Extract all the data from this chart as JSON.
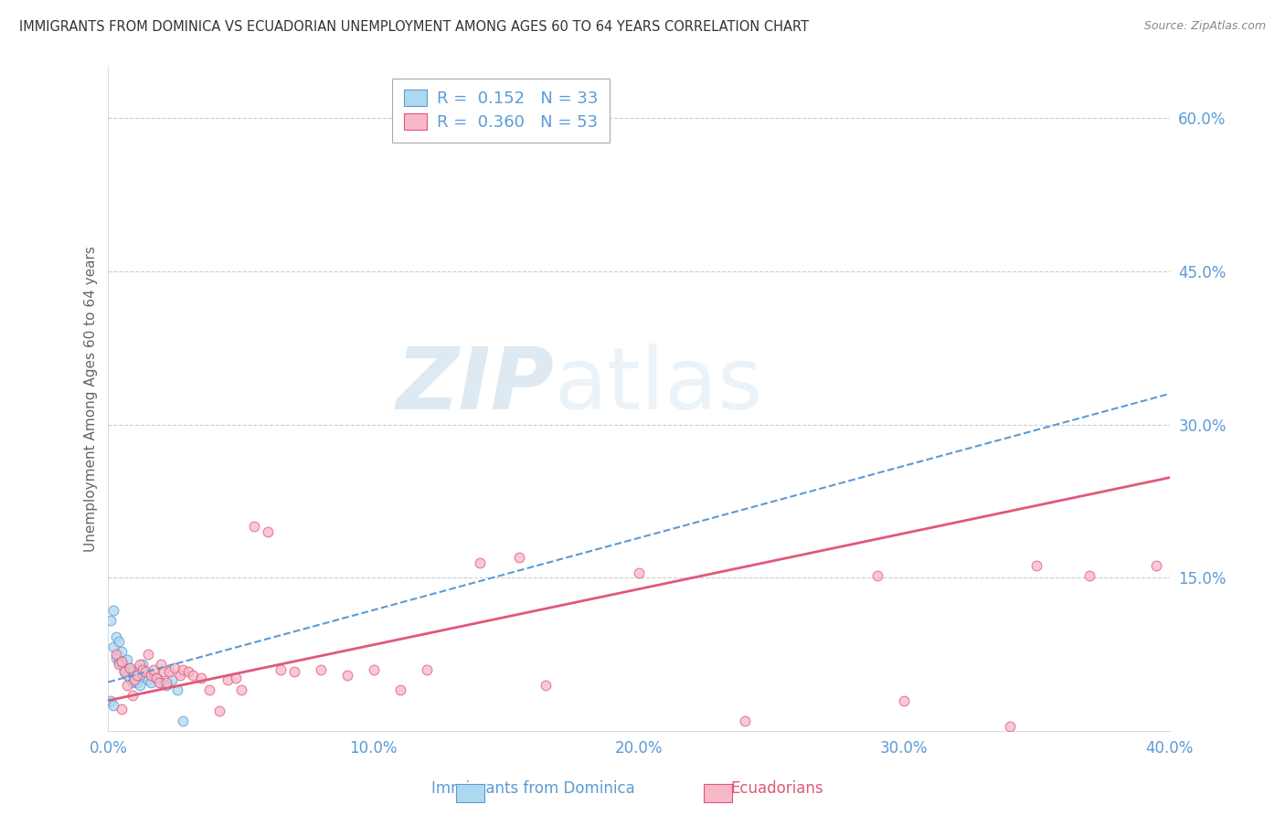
{
  "title": "IMMIGRANTS FROM DOMINICA VS ECUADORIAN UNEMPLOYMENT AMONG AGES 60 TO 64 YEARS CORRELATION CHART",
  "source": "Source: ZipAtlas.com",
  "ylabel": "Unemployment Among Ages 60 to 64 years",
  "xlim": [
    0.0,
    0.4
  ],
  "ylim": [
    0.0,
    0.65
  ],
  "xticks": [
    0.0,
    0.1,
    0.2,
    0.3,
    0.4
  ],
  "xtick_labels": [
    "0.0%",
    "10.0%",
    "20.0%",
    "30.0%",
    "40.0%"
  ],
  "yticks_right": [
    0.15,
    0.3,
    0.45,
    0.6
  ],
  "ytick_right_labels": [
    "15.0%",
    "30.0%",
    "45.0%",
    "60.0%"
  ],
  "grid_color": "#cccccc",
  "background_color": "#ffffff",
  "legend_R1": "R =  0.152",
  "legend_N1": "N = 33",
  "legend_R2": "R =  0.360",
  "legend_N2": "N = 53",
  "blue_fill": "#aed8f0",
  "blue_edge": "#5b9bd5",
  "pink_fill": "#f7b8c8",
  "pink_edge": "#e05878",
  "blue_scatter": [
    [
      0.001,
      0.108
    ],
    [
      0.002,
      0.118
    ],
    [
      0.002,
      0.082
    ],
    [
      0.003,
      0.092
    ],
    [
      0.003,
      0.072
    ],
    [
      0.004,
      0.088
    ],
    [
      0.004,
      0.068
    ],
    [
      0.005,
      0.078
    ],
    [
      0.005,
      0.065
    ],
    [
      0.006,
      0.062
    ],
    [
      0.006,
      0.058
    ],
    [
      0.007,
      0.07
    ],
    [
      0.007,
      0.055
    ],
    [
      0.008,
      0.062
    ],
    [
      0.008,
      0.052
    ],
    [
      0.009,
      0.058
    ],
    [
      0.009,
      0.048
    ],
    [
      0.01,
      0.055
    ],
    [
      0.01,
      0.05
    ],
    [
      0.011,
      0.048
    ],
    [
      0.012,
      0.045
    ],
    [
      0.013,
      0.065
    ],
    [
      0.014,
      0.055
    ],
    [
      0.015,
      0.05
    ],
    [
      0.016,
      0.048
    ],
    [
      0.018,
      0.052
    ],
    [
      0.02,
      0.048
    ],
    [
      0.022,
      0.045
    ],
    [
      0.024,
      0.05
    ],
    [
      0.026,
      0.04
    ],
    [
      0.028,
      0.01
    ],
    [
      0.001,
      0.03
    ],
    [
      0.002,
      0.025
    ]
  ],
  "pink_scatter": [
    [
      0.003,
      0.075
    ],
    [
      0.004,
      0.065
    ],
    [
      0.005,
      0.022
    ],
    [
      0.005,
      0.068
    ],
    [
      0.006,
      0.058
    ],
    [
      0.007,
      0.045
    ],
    [
      0.008,
      0.062
    ],
    [
      0.009,
      0.035
    ],
    [
      0.01,
      0.05
    ],
    [
      0.011,
      0.055
    ],
    [
      0.012,
      0.065
    ],
    [
      0.013,
      0.06
    ],
    [
      0.014,
      0.058
    ],
    [
      0.015,
      0.075
    ],
    [
      0.016,
      0.055
    ],
    [
      0.017,
      0.06
    ],
    [
      0.018,
      0.052
    ],
    [
      0.019,
      0.048
    ],
    [
      0.02,
      0.065
    ],
    [
      0.021,
      0.058
    ],
    [
      0.022,
      0.048
    ],
    [
      0.023,
      0.058
    ],
    [
      0.025,
      0.062
    ],
    [
      0.027,
      0.055
    ],
    [
      0.028,
      0.06
    ],
    [
      0.03,
      0.058
    ],
    [
      0.032,
      0.055
    ],
    [
      0.035,
      0.052
    ],
    [
      0.038,
      0.04
    ],
    [
      0.042,
      0.02
    ],
    [
      0.045,
      0.05
    ],
    [
      0.048,
      0.052
    ],
    [
      0.05,
      0.04
    ],
    [
      0.055,
      0.2
    ],
    [
      0.06,
      0.195
    ],
    [
      0.065,
      0.06
    ],
    [
      0.07,
      0.058
    ],
    [
      0.08,
      0.06
    ],
    [
      0.09,
      0.055
    ],
    [
      0.1,
      0.06
    ],
    [
      0.11,
      0.04
    ],
    [
      0.12,
      0.06
    ],
    [
      0.14,
      0.165
    ],
    [
      0.155,
      0.17
    ],
    [
      0.165,
      0.045
    ],
    [
      0.2,
      0.155
    ],
    [
      0.24,
      0.01
    ],
    [
      0.29,
      0.152
    ],
    [
      0.3,
      0.03
    ],
    [
      0.34,
      0.005
    ],
    [
      0.35,
      0.162
    ],
    [
      0.37,
      0.152
    ],
    [
      0.395,
      0.162
    ]
  ],
  "blue_line_x": [
    0.0,
    0.4
  ],
  "blue_line_y": [
    0.048,
    0.33
  ],
  "pink_line_x": [
    0.0,
    0.4
  ],
  "pink_line_y": [
    0.03,
    0.248
  ]
}
